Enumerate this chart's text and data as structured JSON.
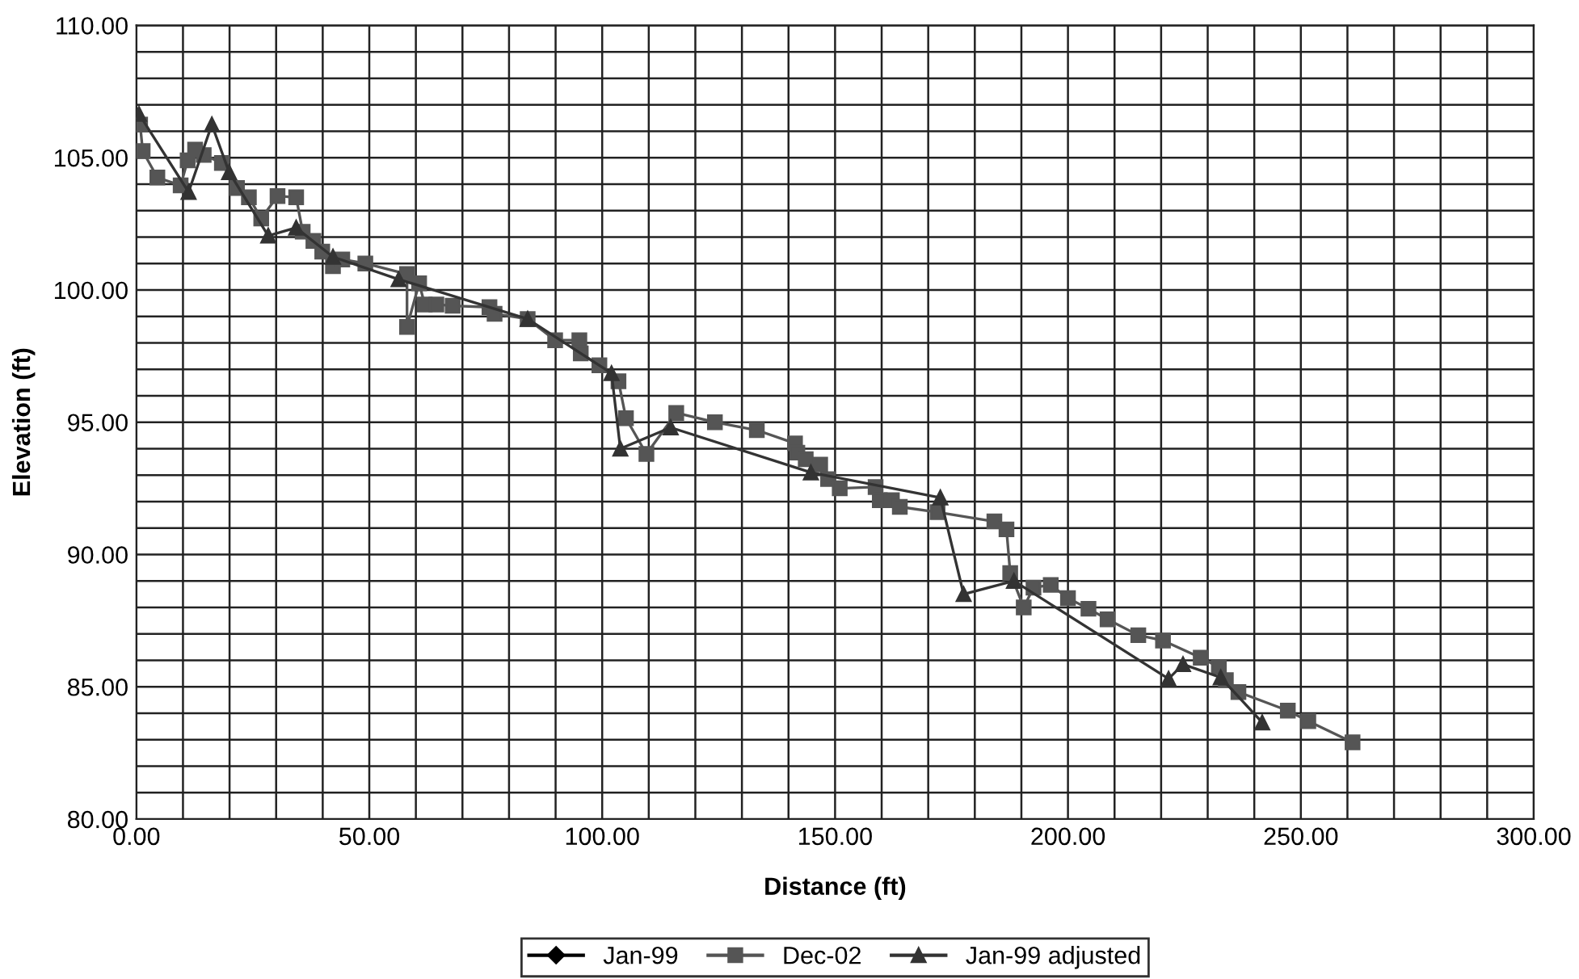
{
  "chart_data": {
    "type": "line",
    "xlabel": "Distance (ft)",
    "ylabel": "Elevation (ft)",
    "xlim": [
      0,
      300
    ],
    "ylim": [
      80,
      110
    ],
    "xticks": [
      {
        "value": 0,
        "label": "0.00"
      },
      {
        "value": 10,
        "label": null
      },
      {
        "value": 20,
        "label": null
      },
      {
        "value": 30,
        "label": null
      },
      {
        "value": 40,
        "label": null
      },
      {
        "value": 50,
        "label": "50.00"
      },
      {
        "value": 60,
        "label": null
      },
      {
        "value": 70,
        "label": null
      },
      {
        "value": 80,
        "label": null
      },
      {
        "value": 90,
        "label": null
      },
      {
        "value": 100,
        "label": "100.00"
      },
      {
        "value": 110,
        "label": null
      },
      {
        "value": 120,
        "label": null
      },
      {
        "value": 130,
        "label": null
      },
      {
        "value": 140,
        "label": null
      },
      {
        "value": 150,
        "label": "150.00"
      },
      {
        "value": 160,
        "label": null
      },
      {
        "value": 170,
        "label": null
      },
      {
        "value": 180,
        "label": null
      },
      {
        "value": 190,
        "label": null
      },
      {
        "value": 200,
        "label": "200.00"
      },
      {
        "value": 210,
        "label": null
      },
      {
        "value": 220,
        "label": null
      },
      {
        "value": 230,
        "label": null
      },
      {
        "value": 240,
        "label": null
      },
      {
        "value": 250,
        "label": "250.00"
      },
      {
        "value": 260,
        "label": null
      },
      {
        "value": 270,
        "label": null
      },
      {
        "value": 280,
        "label": null
      },
      {
        "value": 290,
        "label": null
      },
      {
        "value": 300,
        "label": "300.00"
      }
    ],
    "yticks": [
      {
        "value": 80,
        "label": "80.00"
      },
      {
        "value": 81,
        "label": null
      },
      {
        "value": 82,
        "label": null
      },
      {
        "value": 83,
        "label": null
      },
      {
        "value": 84,
        "label": null
      },
      {
        "value": 85,
        "label": "85.00"
      },
      {
        "value": 86,
        "label": null
      },
      {
        "value": 87,
        "label": null
      },
      {
        "value": 88,
        "label": null
      },
      {
        "value": 89,
        "label": null
      },
      {
        "value": 90,
        "label": "90.00"
      },
      {
        "value": 91,
        "label": null
      },
      {
        "value": 92,
        "label": null
      },
      {
        "value": 93,
        "label": null
      },
      {
        "value": 94,
        "label": null
      },
      {
        "value": 95,
        "label": "95.00"
      },
      {
        "value": 96,
        "label": null
      },
      {
        "value": 97,
        "label": null
      },
      {
        "value": 98,
        "label": null
      },
      {
        "value": 99,
        "label": null
      },
      {
        "value": 100,
        "label": "100.00"
      },
      {
        "value": 101,
        "label": null
      },
      {
        "value": 102,
        "label": null
      },
      {
        "value": 103,
        "label": null
      },
      {
        "value": 104,
        "label": null
      },
      {
        "value": 105,
        "label": "105.00"
      },
      {
        "value": 106,
        "label": null
      },
      {
        "value": 107,
        "label": null
      },
      {
        "value": 108,
        "label": null
      },
      {
        "value": 109,
        "label": null
      },
      {
        "value": 110,
        "label": "110.00"
      }
    ],
    "grid": true,
    "legend": "bottom",
    "line_style": "solid",
    "series": [
      {
        "name": "Jan-99",
        "color": "#000000",
        "marker": "diamond"
      },
      {
        "name": "Dec-02",
        "color": "#555555",
        "marker": "square",
        "x": [
          0.8,
          1.35,
          4.5,
          9.5,
          11.0,
          12.6,
          14.45,
          18.35,
          21.6,
          24.15,
          26.8,
          30.3,
          34.3,
          35.7,
          38.0,
          39.9,
          42.2,
          44.2,
          49.15,
          58.1,
          58.1,
          60.7,
          61.9,
          64.4,
          67.9,
          75.8,
          76.9,
          84.0,
          89.9,
          95.1,
          95.4,
          99.4,
          103.5,
          105.1,
          109.5,
          115.9,
          124.2,
          133.2,
          141.4,
          141.9,
          143.7,
          146.8,
          148.5,
          151.0,
          158.7,
          159.6,
          162.2,
          163.9,
          172.0,
          184.2,
          186.8,
          187.6,
          190.5,
          192.6,
          196.3,
          200.0,
          204.4,
          208.5,
          215.1,
          220.4,
          228.5,
          232.4,
          233.9,
          236.6,
          247.2,
          251.6,
          261.1
        ],
        "values": [
          106.25,
          105.25,
          104.25,
          103.95,
          104.9,
          105.3,
          105.1,
          104.8,
          103.85,
          103.5,
          102.7,
          103.55,
          103.5,
          102.2,
          101.85,
          101.45,
          100.9,
          101.15,
          101.0,
          100.6,
          98.6,
          100.25,
          99.45,
          99.45,
          99.4,
          99.35,
          99.1,
          98.9,
          98.1,
          98.1,
          97.6,
          97.15,
          96.55,
          95.15,
          93.8,
          95.35,
          95.0,
          94.7,
          94.2,
          93.85,
          93.6,
          93.4,
          92.85,
          92.5,
          92.55,
          92.05,
          92.05,
          91.8,
          91.6,
          91.25,
          90.95,
          89.3,
          88.0,
          88.75,
          88.85,
          88.35,
          87.95,
          87.55,
          86.95,
          86.75,
          86.1,
          85.75,
          85.25,
          84.8,
          84.1,
          83.7,
          82.9
        ]
      },
      {
        "name": "Jan-99 adjusted",
        "color": "#333333",
        "marker": "triangle",
        "x": [
          0.55,
          11.2,
          16.2,
          19.9,
          28.3,
          34.3,
          42.2,
          56.3,
          84.0,
          102.0,
          103.9,
          114.7,
          144.8,
          172.6,
          177.6,
          188.4,
          221.6,
          224.7,
          232.8,
          241.7
        ],
        "values": [
          106.65,
          103.7,
          106.25,
          104.45,
          102.05,
          102.35,
          101.25,
          100.4,
          98.9,
          96.85,
          94.0,
          94.8,
          93.1,
          92.15,
          88.5,
          89.0,
          85.3,
          85.85,
          85.35,
          83.65
        ]
      }
    ]
  }
}
